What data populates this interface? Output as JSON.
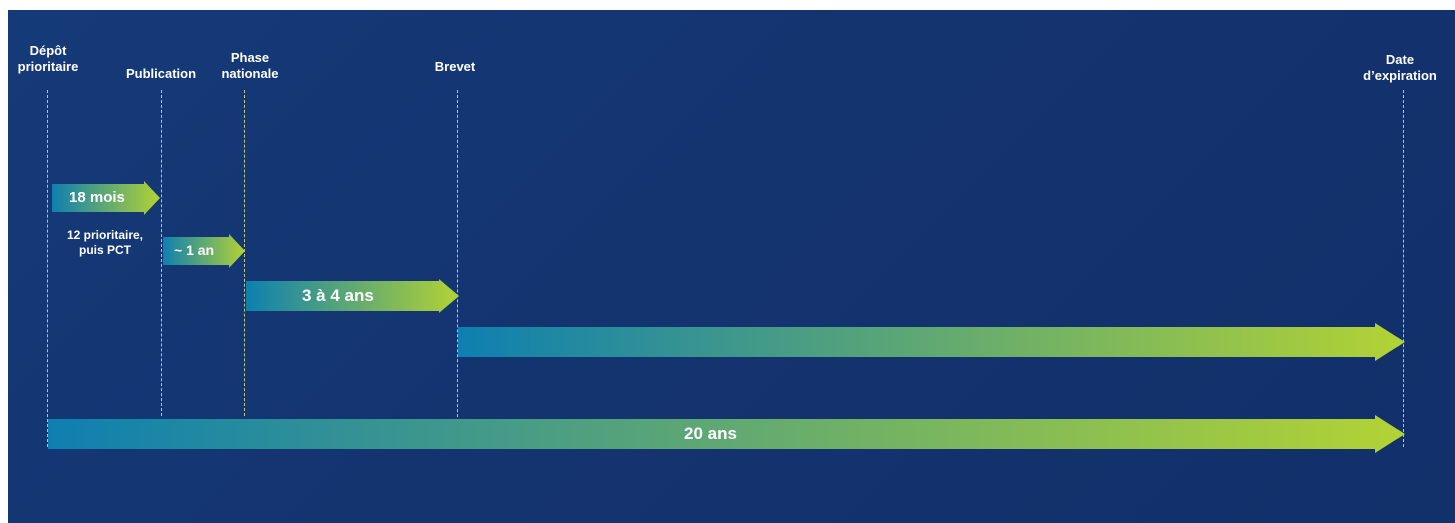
{
  "colors": {
    "background": "#143470",
    "gradient_start": "#0e7fb0",
    "gradient_end": "#b3d334",
    "guide_line": "#c8c870"
  },
  "milestones": [
    {
      "id": "depot",
      "label": "Dépôt\nprioritaire"
    },
    {
      "id": "publication",
      "label": "Publication"
    },
    {
      "id": "phase",
      "label": "Phase\nnationale"
    },
    {
      "id": "brevet",
      "label": "Brevet"
    },
    {
      "id": "expiration",
      "label": "Date\nd’expiration"
    }
  ],
  "arrows": [
    {
      "id": "a18mois",
      "label": "18 mois"
    },
    {
      "id": "a1an",
      "label": "~ 1 an"
    },
    {
      "id": "a3a4ans",
      "label": "3 à 4 ans"
    },
    {
      "id": "aprotection",
      "label": ""
    },
    {
      "id": "a20ans",
      "label": "20 ans"
    }
  ],
  "note": {
    "text": "12 prioritaire,\npuis PCT"
  }
}
